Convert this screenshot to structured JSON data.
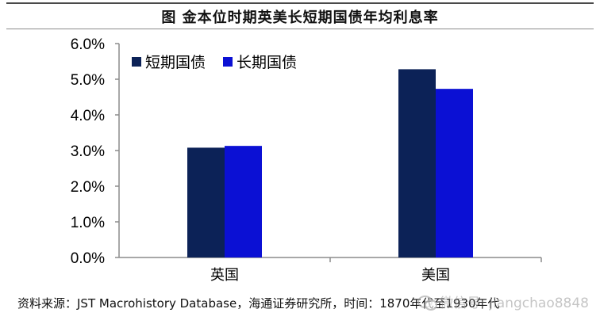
{
  "title": "图  金本位时期英美长短期国债年均利息率",
  "source": "资料来源：JST Macrohistory Database，海通证券研究所，时间：1870年代至1930年代",
  "watermark": {
    "icon": "wechat-icon",
    "text": "微信号: jiangchao8848"
  },
  "colors": {
    "short_term": "#0c2257",
    "long_term": "#0b10d4",
    "axis": "#8c8c8c"
  },
  "chart_data": {
    "type": "bar",
    "categories": [
      "英国",
      "美国"
    ],
    "series": [
      {
        "name": "短期国债",
        "values": [
          3.08,
          5.28
        ]
      },
      {
        "name": "长期国债",
        "values": [
          3.13,
          4.73
        ]
      }
    ],
    "ylim": [
      0,
      6
    ],
    "yticks": [
      "0.0%",
      "1.0%",
      "2.0%",
      "3.0%",
      "4.0%",
      "5.0%",
      "6.0%"
    ],
    "ytick_values": [
      0,
      1,
      2,
      3,
      4,
      5,
      6
    ],
    "unit": "%",
    "grid": false,
    "legend_position": "top-left"
  }
}
